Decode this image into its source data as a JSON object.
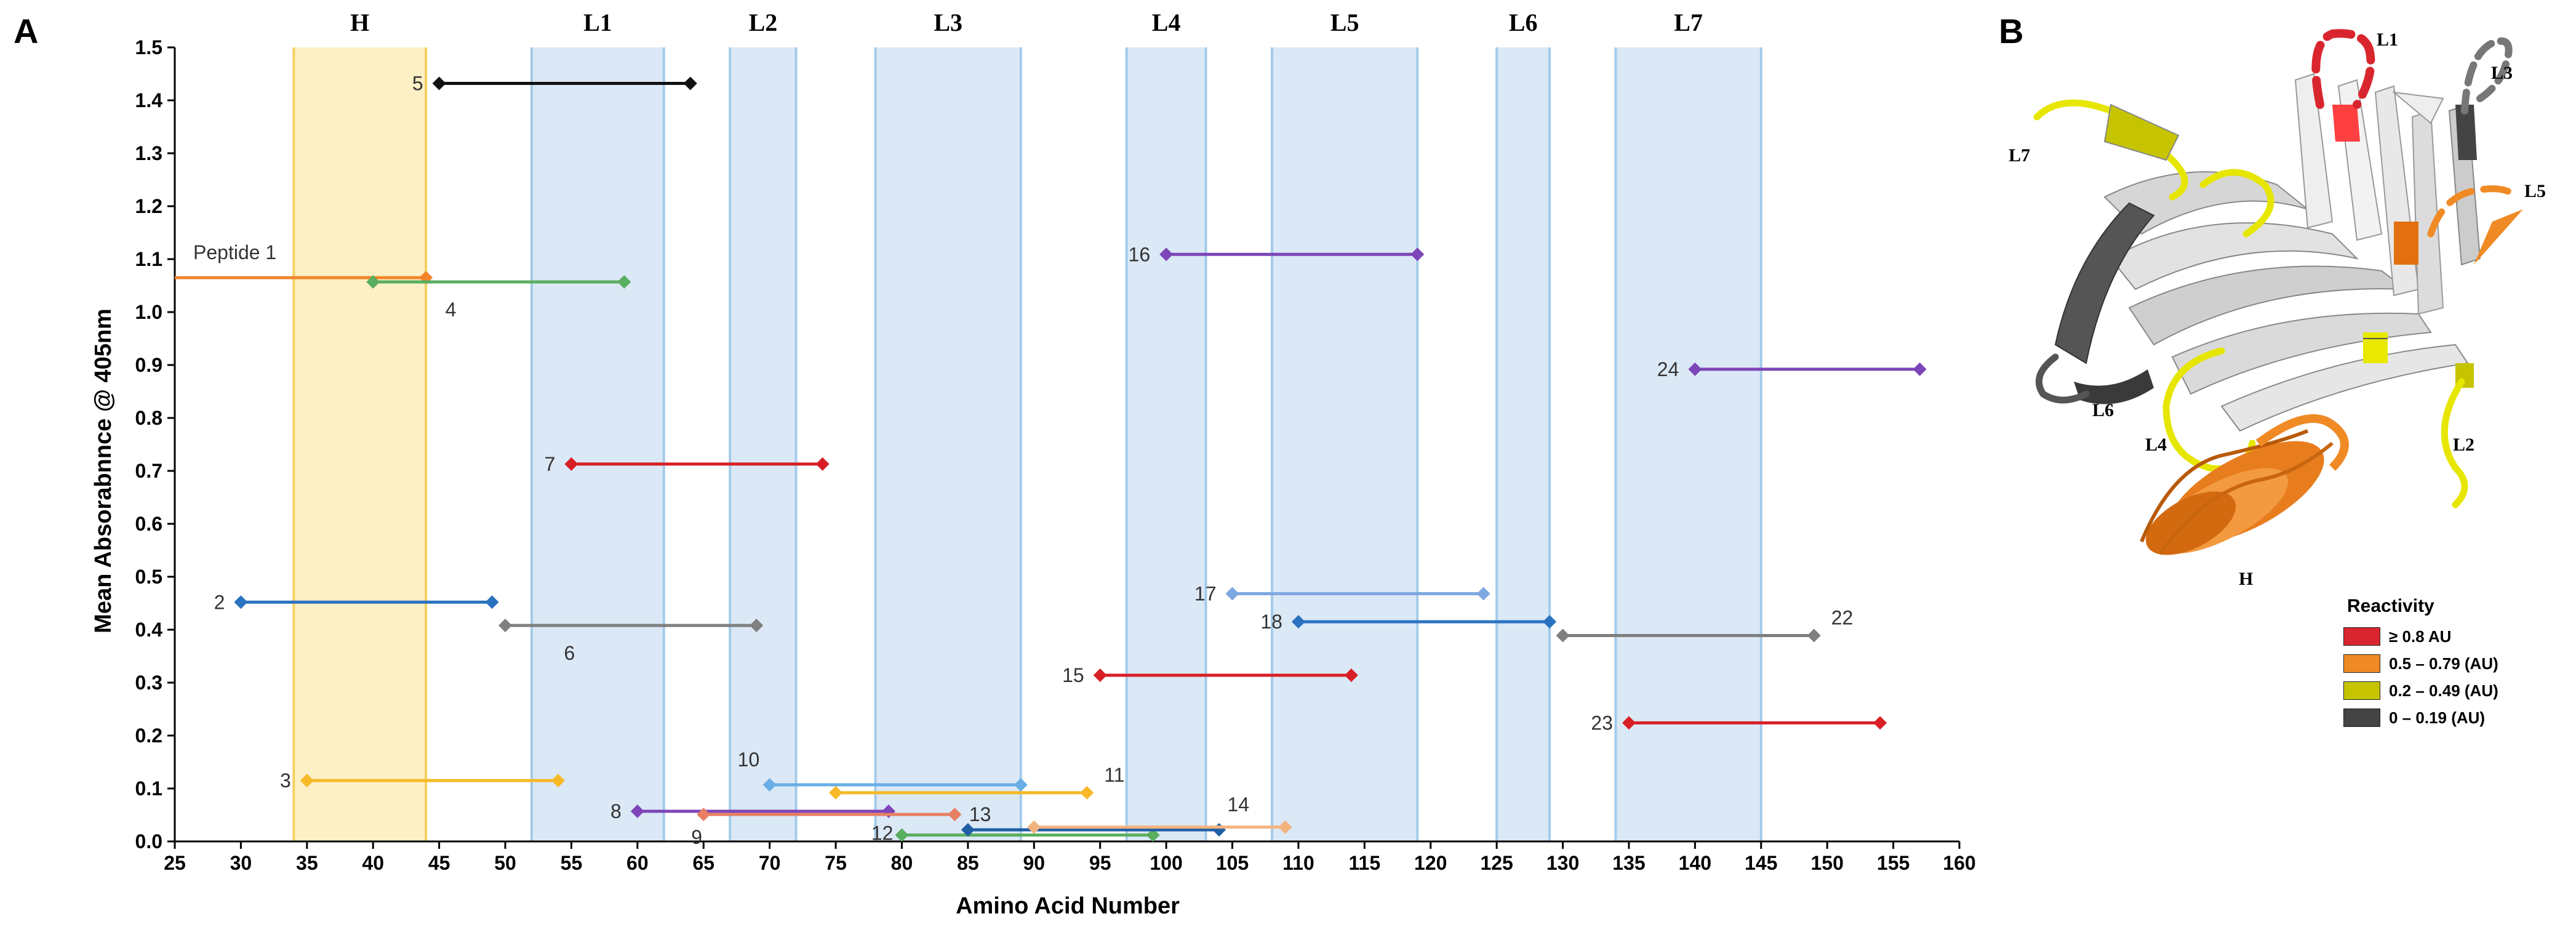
{
  "panel_labels": {
    "a": "A",
    "b": "B"
  },
  "chart_data": {
    "type": "range-bar",
    "xlabel": "Amino Acid Number",
    "ylabel": "Mean Absorabnnce @ 405nm",
    "xlim": [
      25,
      160
    ],
    "ylim": [
      0,
      1.5
    ],
    "xticks": [
      25,
      30,
      35,
      40,
      45,
      50,
      55,
      60,
      65,
      70,
      75,
      80,
      85,
      90,
      95,
      100,
      105,
      110,
      115,
      120,
      125,
      130,
      135,
      140,
      145,
      150,
      155,
      160
    ],
    "yticks": [
      "0.0",
      "0.1",
      "0.2",
      "0.3",
      "0.4",
      "0.5",
      "0.6",
      "0.7",
      "0.8",
      "0.9",
      "1.0",
      "1.1",
      "1.2",
      "1.3",
      "1.4",
      "1.5"
    ],
    "regions": [
      {
        "label": "H",
        "start": 34,
        "end": 44,
        "kind": "helix"
      },
      {
        "label": "L1",
        "start": 52,
        "end": 62,
        "kind": "loop"
      },
      {
        "label": "L2",
        "start": 67,
        "end": 72,
        "kind": "loop"
      },
      {
        "label": "L3",
        "start": 78,
        "end": 89,
        "kind": "loop"
      },
      {
        "label": "L4",
        "start": 97,
        "end": 103,
        "kind": "loop"
      },
      {
        "label": "L5",
        "start": 108,
        "end": 119,
        "kind": "loop"
      },
      {
        "label": "L6",
        "start": 125,
        "end": 129,
        "kind": "loop"
      },
      {
        "label": "L7",
        "start": 134,
        "end": 145,
        "kind": "loop"
      }
    ],
    "peptides": [
      {
        "label": "Peptide 1",
        "start": 25,
        "end": 44,
        "value": 1.065,
        "color": "#f4842a",
        "label_pos": "above-left",
        "start_marker": false
      },
      {
        "label": "2",
        "start": 30,
        "end": 49,
        "value": 0.452,
        "color": "#2a72c0",
        "label_pos": "left"
      },
      {
        "label": "3",
        "start": 35,
        "end": 54,
        "value": 0.115,
        "color": "#f7b928",
        "label_pos": "left"
      },
      {
        "label": "4",
        "start": 40,
        "end": 59,
        "value": 1.057,
        "color": "#5aae5f",
        "label_pos": "below"
      },
      {
        "label": "5",
        "start": 45,
        "end": 64,
        "value": 1.432,
        "color": "#111111",
        "label_pos": "left"
      },
      {
        "label": "6",
        "start": 50,
        "end": 69,
        "value": 0.408,
        "color": "#7f7f7f",
        "label_pos": "below"
      },
      {
        "label": "7",
        "start": 55,
        "end": 74,
        "value": 0.713,
        "color": "#d81f26",
        "label_pos": "left"
      },
      {
        "label": "8",
        "start": 60,
        "end": 79,
        "value": 0.057,
        "color": "#7c45b8",
        "label_pos": "left"
      },
      {
        "label": "9",
        "start": 65,
        "end": 84,
        "value": 0.051,
        "color": "#e87f62",
        "label_pos": "below"
      },
      {
        "label": "10",
        "start": 70,
        "end": 89,
        "value": 0.107,
        "color": "#6aaee6",
        "label_pos": "above-left"
      },
      {
        "label": "11",
        "start": 75,
        "end": 94,
        "value": 0.092,
        "color": "#f7b928",
        "label_pos": "above-right"
      },
      {
        "label": "12",
        "start": 80,
        "end": 99,
        "value": 0.012,
        "color": "#5aae5f",
        "label_pos": "left"
      },
      {
        "label": "13",
        "start": 85,
        "end": 104,
        "value": 0.022,
        "color": "#1f5fa6",
        "label_pos": "above-right"
      },
      {
        "label": "14",
        "start": 90,
        "end": 109,
        "value": 0.027,
        "color": "#f3b37e",
        "label_pos": "above-right"
      },
      {
        "label": "15",
        "start": 95,
        "end": 114,
        "value": 0.314,
        "color": "#d81f26",
        "label_pos": "left"
      },
      {
        "label": "16",
        "start": 100,
        "end": 119,
        "value": 1.109,
        "color": "#7c45b8",
        "label_pos": "left"
      },
      {
        "label": "17",
        "start": 105,
        "end": 124,
        "value": 0.468,
        "color": "#7ea8e0",
        "label_pos": "left"
      },
      {
        "label": "18",
        "start": 110,
        "end": 129,
        "value": 0.415,
        "color": "#2a72c0",
        "label_pos": "left"
      },
      {
        "label": "22",
        "start": 130,
        "end": 149,
        "value": 0.389,
        "color": "#7f7f7f",
        "label_pos": "above-right"
      },
      {
        "label": "23",
        "start": 135,
        "end": 154,
        "value": 0.224,
        "color": "#d81f26",
        "label_pos": "left"
      },
      {
        "label": "24",
        "start": 140,
        "end": 157,
        "value": 0.892,
        "color": "#7c45b8",
        "label_pos": "left"
      }
    ]
  },
  "structure": {
    "loop_labels": {
      "l1": "L1",
      "l2": "L2",
      "l3": "L3",
      "l4": "L4",
      "l5": "L5",
      "l6": "L6",
      "l7": "L7",
      "h": "H"
    }
  },
  "legend": {
    "title": "Reactivity",
    "items": [
      {
        "label": "≥ 0.8 AU",
        "color": "#d9262e"
      },
      {
        "label": "0.5 – 0.79 (AU)",
        "color": "#f08a24"
      },
      {
        "label": "0.2 – 0.49 (AU)",
        "color": "#c6c400"
      },
      {
        "label": "0 – 0.19 (AU)",
        "color": "#444444"
      }
    ]
  }
}
